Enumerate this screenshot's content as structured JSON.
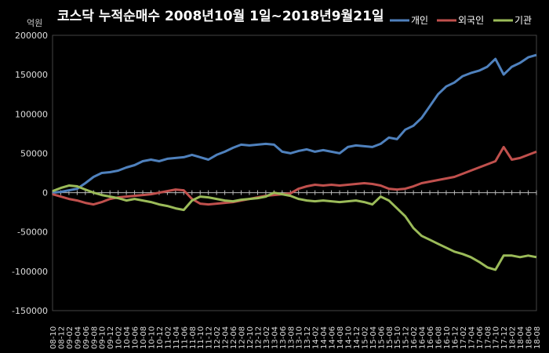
{
  "chart_data": {
    "type": "line",
    "title": "코스닥  누적순매수 2008년10월 1일~2018년9월21일",
    "ylabel": "억원",
    "ylim": [
      -150000,
      200000
    ],
    "yticks": [
      200000,
      150000,
      100000,
      50000,
      0,
      -50000,
      -100000,
      -150000
    ],
    "x": [
      "08-10",
      "08-12",
      "09-02",
      "09-04",
      "09-06",
      "09-08",
      "09-10",
      "09-12",
      "10-02",
      "10-04",
      "10-06",
      "10-08",
      "10-10",
      "10-12",
      "11-02",
      "11-04",
      "11-06",
      "11-08",
      "11-10",
      "11-12",
      "12-02",
      "12-04",
      "12-06",
      "12-08",
      "12-10",
      "12-12",
      "13-02",
      "13-04",
      "13-06",
      "13-08",
      "13-10",
      "13-12",
      "14-02",
      "14-04",
      "14-06",
      "14-08",
      "14-10",
      "14-12",
      "15-02",
      "15-04",
      "15-06",
      "15-08",
      "15-10",
      "15-12",
      "16-02",
      "16-04",
      "16-06",
      "16-08",
      "16-10",
      "16-12",
      "17-02",
      "17-04",
      "17-06",
      "17-08",
      "17-10",
      "17-12",
      "18-02",
      "18-04",
      "18-06",
      "18-08"
    ],
    "legend_position": "top-right",
    "series": [
      {
        "name": "개인",
        "color": "#4f81bd",
        "values": [
          0,
          1000,
          3000,
          5000,
          12000,
          20000,
          25000,
          26000,
          28000,
          32000,
          35000,
          40000,
          42000,
          40000,
          43000,
          44000,
          45000,
          48000,
          45000,
          42000,
          48000,
          52000,
          57000,
          61000,
          60000,
          61000,
          62000,
          61000,
          52000,
          50000,
          53000,
          55000,
          52000,
          54000,
          52000,
          50000,
          58000,
          60000,
          59000,
          58000,
          62000,
          70000,
          68000,
          80000,
          85000,
          95000,
          110000,
          125000,
          135000,
          140000,
          148000,
          152000,
          155000,
          160000,
          170000,
          150000,
          160000,
          165000,
          172000,
          175000
        ]
      },
      {
        "name": "외국인",
        "color": "#c0504d",
        "values": [
          -2000,
          -5000,
          -8000,
          -10000,
          -13000,
          -15000,
          -12000,
          -8000,
          -6000,
          -5000,
          -4000,
          -3000,
          -2000,
          0,
          2000,
          4000,
          3000,
          -8000,
          -14000,
          -15000,
          -14000,
          -13000,
          -12000,
          -10000,
          -8000,
          -6000,
          -4000,
          -3000,
          -2000,
          -1000,
          5000,
          8000,
          10000,
          9000,
          10000,
          9000,
          10000,
          11000,
          12000,
          11000,
          9000,
          5000,
          4000,
          5000,
          8000,
          12000,
          14000,
          16000,
          18000,
          20000,
          24000,
          28000,
          32000,
          36000,
          40000,
          58000,
          42000,
          44000,
          48000,
          52000
        ]
      },
      {
        "name": "기관",
        "color": "#9bbb59",
        "values": [
          2000,
          6000,
          9000,
          8000,
          4000,
          0,
          -3000,
          -5000,
          -7000,
          -10000,
          -8000,
          -10000,
          -12000,
          -15000,
          -17000,
          -20000,
          -22000,
          -10000,
          -5000,
          -6000,
          -8000,
          -10000,
          -11000,
          -9000,
          -8000,
          -7000,
          -5000,
          0,
          -2000,
          -4000,
          -8000,
          -10000,
          -11000,
          -10000,
          -11000,
          -12000,
          -11000,
          -10000,
          -12000,
          -15000,
          -5000,
          -10000,
          -20000,
          -30000,
          -45000,
          -55000,
          -60000,
          -65000,
          -70000,
          -75000,
          -78000,
          -82000,
          -88000,
          -95000,
          -98000,
          -80000,
          -80000,
          -82000,
          -80000,
          -82000
        ]
      }
    ]
  }
}
